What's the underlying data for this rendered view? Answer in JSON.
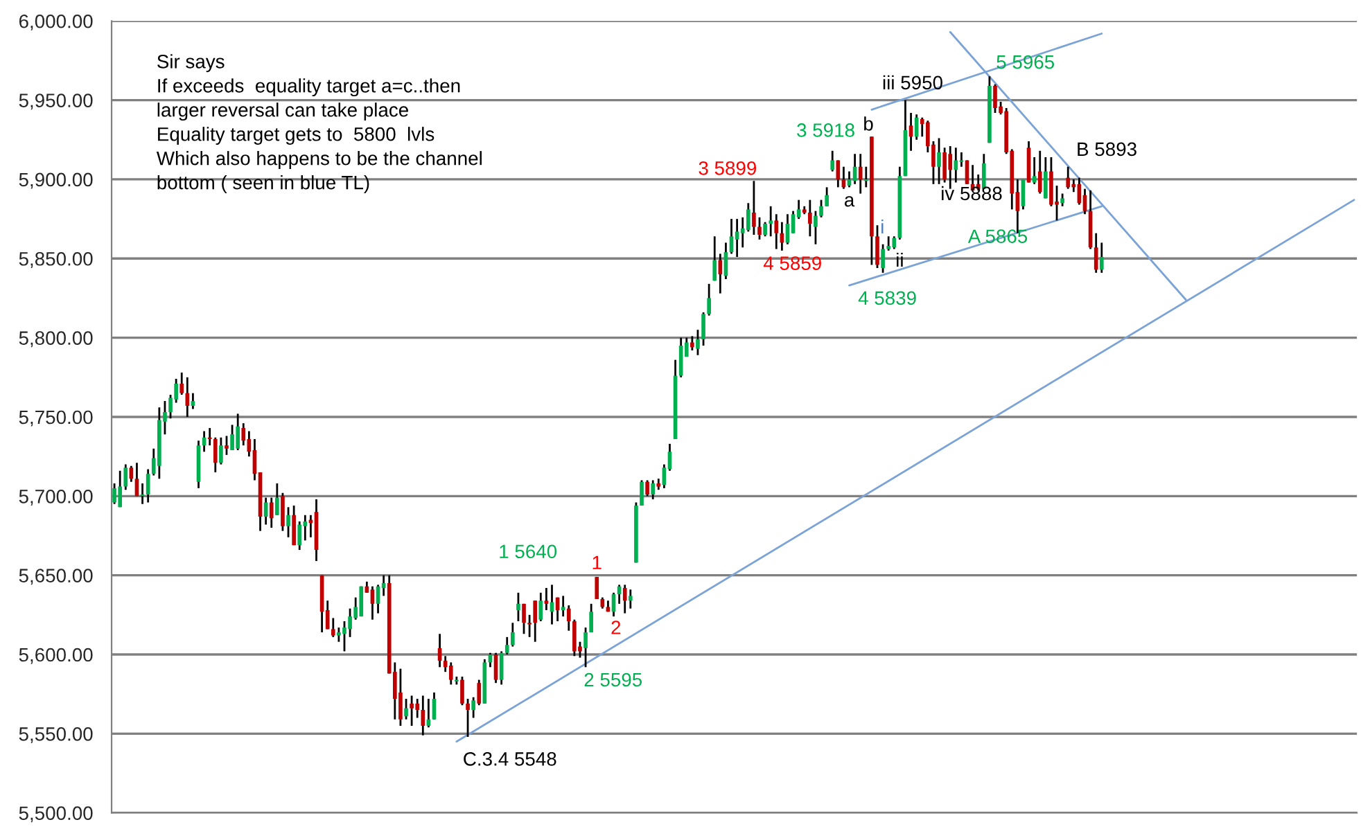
{
  "chart_data": {
    "type": "candlestick",
    "ylim": [
      5500,
      6000
    ],
    "yticks": [
      {
        "value": 5500,
        "label": "5,500.00"
      },
      {
        "value": 5550,
        "label": "5,550.00"
      },
      {
        "value": 5600,
        "label": "5,600.00"
      },
      {
        "value": 5650,
        "label": "5,650.00"
      },
      {
        "value": 5700,
        "label": "5,700.00"
      },
      {
        "value": 5750,
        "label": "5,750.00"
      },
      {
        "value": 5800,
        "label": "5,800.00"
      },
      {
        "value": 5850,
        "label": "5,850.00"
      },
      {
        "value": 5900,
        "label": "5,900.00"
      },
      {
        "value": 5950,
        "label": "5,950.00"
      },
      {
        "value": 6000,
        "label": "6,000.00"
      }
    ],
    "grid": "y",
    "tick_labels": "y",
    "categories": [
      null,
      null,
      null,
      null,
      null,
      null,
      null,
      null,
      null,
      null,
      null,
      null,
      null,
      null,
      null,
      null,
      null,
      null,
      null,
      null,
      null,
      null,
      null,
      null,
      null,
      null,
      null,
      null,
      null,
      null,
      null,
      null,
      null,
      null,
      null,
      null,
      null,
      null,
      null,
      null,
      null,
      null,
      null,
      null,
      null,
      null,
      null,
      null,
      null,
      null,
      null,
      null,
      null,
      null,
      null,
      null,
      null,
      null,
      null,
      null,
      null,
      null,
      null,
      null,
      null,
      null,
      null,
      null,
      null,
      null,
      null,
      null,
      null,
      null,
      null,
      null,
      null,
      null,
      null,
      null,
      null,
      null,
      null,
      null,
      null,
      null,
      null,
      null,
      null,
      null,
      null,
      null,
      null,
      null,
      null,
      null,
      null,
      null,
      null,
      null,
      null,
      null,
      null,
      null,
      null,
      null,
      null,
      null,
      null,
      null,
      null,
      null,
      null,
      null,
      null,
      null,
      null,
      null,
      null,
      null,
      null,
      null,
      null,
      null,
      null,
      null,
      null,
      null,
      null,
      null,
      null,
      null,
      null,
      null,
      null,
      null,
      null,
      null,
      null,
      null,
      null,
      null,
      null,
      null,
      null,
      null,
      null,
      null,
      null,
      null,
      null,
      null,
      null,
      null,
      null,
      null,
      null,
      null,
      null,
      null,
      null,
      null,
      null,
      null,
      null,
      null,
      null,
      null,
      null,
      null,
      null,
      null,
      null,
      null,
      null,
      null,
      null,
      null,
      null,
      null,
      null,
      null,
      null,
      null,
      null,
      null,
      null,
      null,
      null,
      null,
      null,
      null,
      null,
      null,
      null,
      null,
      null,
      null,
      null,
      null,
      null,
      null,
      null,
      null,
      null,
      null,
      null,
      null,
      null,
      null,
      null,
      null,
      null,
      null,
      null,
      null,
      null,
      null,
      null,
      null,
      null,
      null
    ],
    "ohlc": [
      [
        5696,
        5708,
        5695,
        5705
      ],
      [
        5693,
        5716,
        5693,
        5706
      ],
      [
        5706,
        5720,
        5704,
        5718
      ],
      [
        5718,
        5719,
        5709,
        5711
      ],
      [
        5711,
        5721,
        5700,
        5700
      ],
      [
        5700,
        5708,
        5695,
        5701
      ],
      [
        5701,
        5717,
        5696,
        5714
      ],
      [
        5714,
        5730,
        5713,
        5724
      ],
      [
        5719,
        5756,
        5711,
        5748
      ],
      [
        5747,
        5760,
        5739,
        5753
      ],
      [
        5753,
        5764,
        5749,
        5762
      ],
      [
        5761,
        5774,
        5759,
        5771
      ],
      [
        5771,
        5778,
        5764,
        5765
      ],
      [
        5765,
        5775,
        5750,
        5757
      ],
      [
        5757,
        5765,
        5755,
        5760
      ],
      [
        5709,
        5735,
        5705,
        5732
      ],
      [
        5732,
        5741,
        5728,
        5737
      ],
      [
        5737,
        5743,
        5732,
        5736
      ],
      [
        5736,
        5737,
        5715,
        5721
      ],
      [
        5721,
        5737,
        5720,
        5732
      ],
      [
        5732,
        5738,
        5726,
        5730
      ],
      [
        5729,
        5745,
        5729,
        5739
      ],
      [
        5730,
        5752,
        5729,
        5744
      ],
      [
        5743,
        5746,
        5732,
        5735
      ],
      [
        5736,
        5741,
        5725,
        5728
      ],
      [
        5729,
        5736,
        5710,
        5714
      ],
      [
        5715,
        5715,
        5678,
        5687
      ],
      [
        5687,
        5699,
        5682,
        5696
      ],
      [
        5696,
        5699,
        5680,
        5686
      ],
      [
        5688,
        5708,
        5688,
        5699
      ],
      [
        5700,
        5702,
        5678,
        5681
      ],
      [
        5681,
        5693,
        5674,
        5688
      ],
      [
        5688,
        5694,
        5669,
        5669
      ],
      [
        5669,
        5684,
        5666,
        5682
      ],
      [
        5681,
        5688,
        5672,
        5684
      ],
      [
        5685,
        5688,
        5674,
        5683
      ],
      [
        5690,
        5698,
        5659,
        5666
      ],
      [
        5650,
        5650,
        5614,
        5627
      ],
      [
        5628,
        5634,
        5616,
        5616
      ],
      [
        5616,
        5623,
        5611,
        5612
      ],
      [
        5612,
        5617,
        5608,
        5614
      ],
      [
        5613,
        5621,
        5602,
        5617
      ],
      [
        5616,
        5629,
        5611,
        5624
      ],
      [
        5623,
        5636,
        5622,
        5630
      ],
      [
        5624,
        5643,
        5624,
        5643
      ],
      [
        5643,
        5646,
        5639,
        5639
      ],
      [
        5641,
        5643,
        5622,
        5632
      ],
      [
        5632,
        5644,
        5626,
        5643
      ],
      [
        5642,
        5650,
        5637,
        5645
      ],
      [
        5645,
        5650,
        5588,
        5588
      ],
      [
        5589,
        5595,
        5559,
        5572
      ],
      [
        5576,
        5591,
        5555,
        5559
      ],
      [
        5561,
        5572,
        5559,
        5566
      ],
      [
        5569,
        5574,
        5555,
        5566
      ],
      [
        5569,
        5572,
        5560,
        5565
      ],
      [
        5565,
        5574,
        5549,
        5555
      ],
      [
        5555,
        5572,
        5554,
        5559
      ],
      [
        5559,
        5576,
        5559,
        5572
      ],
      [
        5604,
        5613,
        5592,
        5596
      ],
      [
        5596,
        5599,
        5589,
        5592
      ],
      [
        5593,
        5595,
        5581,
        5584
      ],
      [
        5583,
        5586,
        5581,
        5584
      ],
      [
        5584,
        5586,
        5568,
        5569
      ],
      [
        5569,
        5572,
        5548,
        5565
      ],
      [
        5565,
        5573,
        5560,
        5571
      ],
      [
        5582,
        5584,
        5568,
        5569
      ],
      [
        5569,
        5597,
        5569,
        5595
      ],
      [
        5595,
        5601,
        5592,
        5600
      ],
      [
        5600,
        5601,
        5582,
        5584
      ],
      [
        5584,
        5602,
        5581,
        5601
      ],
      [
        5601,
        5611,
        5600,
        5606
      ],
      [
        5606,
        5620,
        5605,
        5614
      ],
      [
        5628,
        5639,
        5621,
        5632
      ],
      [
        5632,
        5632,
        5613,
        5620
      ],
      [
        5620,
        5625,
        5611,
        5619
      ],
      [
        5634,
        5634,
        5608,
        5620
      ],
      [
        5622,
        5639,
        5621,
        5634
      ],
      [
        5634,
        5642,
        5628,
        5632
      ],
      [
        5627,
        5644,
        5619,
        5633
      ],
      [
        5636,
        5636,
        5621,
        5628
      ],
      [
        5628,
        5637,
        5624,
        5630
      ],
      [
        5629,
        5631,
        5615,
        5621
      ],
      [
        5621,
        5622,
        5599,
        5602
      ],
      [
        5605,
        5608,
        5598,
        5602
      ],
      [
        5604,
        5617,
        5592,
        5614
      ],
      [
        5614,
        5632,
        5614,
        5627
      ],
      [
        5649,
        5649,
        5635,
        5635
      ],
      [
        5635,
        5636,
        5629,
        5630
      ],
      [
        5630,
        5634,
        5627,
        5627
      ],
      [
        5627,
        5639,
        5624,
        5638
      ],
      [
        5638,
        5644,
        5632,
        5643
      ],
      [
        5642,
        5644,
        5626,
        5634
      ],
      [
        5634,
        5641,
        5629,
        5637
      ],
      [
        5658,
        5696,
        5658,
        5694
      ],
      [
        5694,
        5710,
        5694,
        5709
      ],
      [
        5709,
        5710,
        5700,
        5701
      ],
      [
        5701,
        5710,
        5698,
        5708
      ],
      [
        5708,
        5711,
        5704,
        5706
      ],
      [
        5707,
        5720,
        5705,
        5718
      ],
      [
        5717,
        5733,
        5716,
        5728
      ],
      [
        5736,
        5786,
        5736,
        5776
      ],
      [
        5776,
        5800,
        5775,
        5795
      ],
      [
        5788,
        5800,
        5788,
        5797
      ],
      [
        5797,
        5801,
        5792,
        5794
      ],
      [
        5793,
        5805,
        5789,
        5799
      ],
      [
        5799,
        5816,
        5795,
        5815
      ],
      [
        5815,
        5834,
        5814,
        5825
      ],
      [
        5836,
        5864,
        5836,
        5849
      ],
      [
        5849,
        5853,
        5828,
        5840
      ],
      [
        5839,
        5860,
        5837,
        5854
      ],
      [
        5854,
        5875,
        5853,
        5864
      ],
      [
        5862,
        5875,
        5851,
        5867
      ],
      [
        5866,
        5876,
        5857,
        5869
      ],
      [
        5868,
        5885,
        5867,
        5881
      ],
      [
        5879,
        5899,
        5865,
        5870
      ],
      [
        5870,
        5876,
        5862,
        5865
      ],
      [
        5865,
        5873,
        5864,
        5872
      ],
      [
        5872,
        5883,
        5864,
        5874
      ],
      [
        5874,
        5878,
        5856,
        5866
      ],
      [
        5866,
        5873,
        5855,
        5860
      ],
      [
        5860,
        5878,
        5859,
        5872
      ],
      [
        5866,
        5880,
        5866,
        5878
      ],
      [
        5876,
        5887,
        5875,
        5881
      ],
      [
        5881,
        5883,
        5878,
        5879
      ],
      [
        5879,
        5887,
        5864,
        5872
      ],
      [
        5870,
        5880,
        5859,
        5877
      ],
      [
        5877,
        5887,
        5876,
        5883
      ],
      [
        5883,
        5895,
        5883,
        5890
      ],
      [
        5906,
        5918,
        5905,
        5912
      ],
      [
        5912,
        5912,
        5895,
        5900
      ],
      [
        5900,
        5908,
        5894,
        5895
      ],
      [
        5896,
        5905,
        5895,
        5900
      ],
      [
        5899,
        5916,
        5897,
        5908
      ],
      [
        5908,
        5916,
        5891,
        5900
      ],
      [
        5899,
        5908,
        5895,
        5900
      ],
      [
        5927,
        5927,
        5846,
        5864
      ],
      [
        5864,
        5871,
        5844,
        5846
      ],
      [
        5844,
        5859,
        5841,
        5856
      ],
      [
        5856,
        5864,
        5855,
        5858
      ],
      [
        5857,
        5864,
        5856,
        5863
      ],
      [
        5863,
        5908,
        5862,
        5902
      ],
      [
        5902,
        5950,
        5902,
        5931
      ],
      [
        5934,
        5942,
        5918,
        5927
      ],
      [
        5927,
        5941,
        5925,
        5939
      ],
      [
        5938,
        5939,
        5927,
        5935
      ],
      [
        5936,
        5937,
        5917,
        5921
      ],
      [
        5922,
        5924,
        5897,
        5908
      ],
      [
        5908,
        5926,
        5897,
        5917
      ],
      [
        5917,
        5920,
        5898,
        5900
      ],
      [
        5916,
        5921,
        5894,
        5906
      ],
      [
        5906,
        5920,
        5898,
        5912
      ],
      [
        5911,
        5917,
        5908,
        5912
      ],
      [
        5912,
        5912,
        5897,
        5897
      ],
      [
        5897,
        5909,
        5893,
        5893
      ],
      [
        5897,
        5903,
        5893,
        5894
      ],
      [
        5894,
        5916,
        5894,
        5910
      ],
      [
        5923,
        5965,
        5923,
        5959
      ],
      [
        5959,
        5960,
        5942,
        5945
      ],
      [
        5946,
        5949,
        5941,
        5942
      ],
      [
        5943,
        5945,
        5916,
        5917
      ],
      [
        5918,
        5919,
        5881,
        5891
      ],
      [
        5892,
        5900,
        5866,
        5880
      ],
      [
        5883,
        5900,
        5881,
        5900
      ],
      [
        5920,
        5924,
        5898,
        5898
      ],
      [
        5898,
        5914,
        5897,
        5902
      ],
      [
        5905,
        5918,
        5891,
        5892
      ],
      [
        5888,
        5914,
        5888,
        5905
      ],
      [
        5905,
        5914,
        5883,
        5884
      ],
      [
        5886,
        5896,
        5874,
        5884
      ],
      [
        5885,
        5891,
        5883,
        5888
      ],
      [
        5901,
        5908,
        5894,
        5895
      ],
      [
        5897,
        5900,
        5892,
        5895
      ],
      [
        5897,
        5901,
        5884,
        5885
      ],
      [
        5890,
        5894,
        5878,
        5880
      ],
      [
        5880,
        5893,
        5856,
        5857
      ],
      [
        5857,
        5866,
        5841,
        5843
      ],
      [
        5843,
        5860,
        5841,
        5851
      ],
      null,
      null,
      null,
      null,
      null,
      null,
      null,
      null,
      null,
      null,
      null,
      null,
      null,
      null,
      null,
      null,
      null,
      null,
      null,
      null,
      null,
      null,
      null,
      null,
      null,
      null,
      null,
      null,
      null,
      null,
      null,
      null,
      null,
      null,
      null,
      null,
      null,
      null,
      null,
      null,
      null,
      null,
      null,
      null,
      null
    ],
    "series": [
      {
        "type": "line",
        "color": "#7ba3d6",
        "values": [
          null,
          null,
          null,
          null,
          null,
          null,
          null,
          null,
          null,
          null,
          null,
          null,
          null,
          null,
          null,
          null,
          null,
          null,
          null,
          null,
          null,
          null,
          null,
          null,
          null,
          null,
          null,
          null,
          null,
          null,
          null,
          null,
          null,
          null,
          null,
          null,
          null,
          null,
          null,
          null,
          null,
          null,
          null,
          null,
          null,
          null,
          null,
          null,
          null,
          null,
          null,
          null,
          null,
          null,
          null,
          null,
          null,
          null,
          null,
          null,
          null,
          5545,
          null,
          null,
          null,
          null,
          null,
          null,
          null,
          null,
          null,
          null,
          null,
          null,
          null,
          null,
          null,
          null,
          null,
          null,
          null,
          null,
          null,
          null,
          null,
          null,
          null,
          null,
          null,
          null,
          null,
          null,
          null,
          null,
          null,
          null,
          null,
          null,
          null,
          null,
          null,
          null,
          null,
          null,
          null,
          null,
          null,
          null,
          null,
          null,
          null,
          null,
          null,
          null,
          null,
          null,
          null,
          null,
          null,
          null,
          null,
          null,
          null,
          null,
          null,
          null,
          null,
          null,
          null,
          null,
          null,
          null,
          null,
          null,
          null,
          null,
          null,
          null,
          null,
          null,
          null,
          null,
          null,
          null,
          null,
          null,
          null,
          null,
          null,
          null,
          null,
          null,
          null,
          null,
          null,
          null,
          null,
          null,
          null,
          null,
          null,
          null,
          null,
          null,
          null,
          null,
          null,
          null,
          null,
          null,
          null,
          null,
          null,
          null,
          null,
          null,
          null,
          null,
          null,
          null,
          null,
          null,
          null,
          null,
          null,
          null,
          null,
          null,
          null,
          null,
          null,
          null,
          null,
          null,
          null,
          null,
          null,
          null,
          null,
          null,
          null,
          null,
          null,
          null,
          null,
          null,
          null,
          null,
          null,
          null,
          null,
          null,
          null,
          null,
          null,
          null,
          null,
          null,
          null,
          null,
          null,
          5887
        ]
      },
      {
        "type": "line",
        "color": "#7ba3d6",
        "values": [
          null,
          null,
          null,
          null,
          null,
          null,
          null,
          null,
          null,
          null,
          null,
          null,
          null,
          null,
          null,
          null,
          null,
          null,
          null,
          null,
          null,
          null,
          null,
          null,
          null,
          null,
          null,
          null,
          null,
          null,
          null,
          null,
          null,
          null,
          null,
          null,
          null,
          null,
          null,
          null,
          null,
          null,
          null,
          null,
          null,
          null,
          null,
          null,
          null,
          null,
          null,
          null,
          null,
          null,
          null,
          null,
          null,
          null,
          null,
          null,
          null,
          null,
          null,
          null,
          null,
          null,
          null,
          null,
          null,
          null,
          null,
          null,
          null,
          null,
          null,
          null,
          null,
          null,
          null,
          null,
          null,
          null,
          null,
          null,
          null,
          null,
          null,
          null,
          null,
          null,
          null,
          null,
          null,
          null,
          null,
          null,
          null,
          null,
          null,
          null,
          null,
          null,
          null,
          null,
          null,
          null,
          null,
          null,
          null,
          null,
          null,
          null,
          null,
          null,
          null,
          null,
          null,
          null,
          null,
          null,
          null,
          null,
          null,
          null,
          null,
          null,
          null,
          null,
          null,
          null,
          null,
          5833,
          null,
          null,
          null,
          null,
          null,
          null,
          null,
          null,
          null,
          null,
          null,
          null,
          null,
          null,
          null,
          null,
          null,
          null,
          null,
          null,
          null,
          null,
          null,
          null,
          null,
          null,
          null,
          null,
          null,
          null,
          null,
          null,
          null,
          null,
          null,
          null,
          null,
          null,
          null,
          null,
          null,
          null,
          null,
          null,
          5883,
          null,
          null,
          null,
          null,
          null,
          null,
          null,
          null,
          null,
          null,
          null,
          null,
          null,
          null,
          null,
          null,
          null,
          null,
          null,
          null,
          null,
          null,
          null,
          null,
          null,
          null,
          null,
          null,
          null,
          null,
          null,
          null,
          null,
          null,
          null,
          null,
          null,
          null,
          null,
          null,
          null,
          null,
          null,
          null,
          null
        ]
      },
      {
        "type": "line",
        "color": "#7ba3d6",
        "values": [
          null,
          null,
          null,
          null,
          null,
          null,
          null,
          null,
          null,
          null,
          null,
          null,
          null,
          null,
          null,
          null,
          null,
          null,
          null,
          null,
          null,
          null,
          null,
          null,
          null,
          null,
          null,
          null,
          null,
          null,
          null,
          null,
          null,
          null,
          null,
          null,
          null,
          null,
          null,
          null,
          null,
          null,
          null,
          null,
          null,
          null,
          null,
          null,
          null,
          null,
          null,
          null,
          null,
          null,
          null,
          null,
          null,
          null,
          null,
          null,
          null,
          null,
          null,
          null,
          null,
          null,
          null,
          null,
          null,
          null,
          null,
          null,
          null,
          null,
          null,
          null,
          null,
          null,
          null,
          null,
          null,
          null,
          null,
          null,
          null,
          null,
          null,
          null,
          null,
          null,
          null,
          null,
          null,
          null,
          null,
          null,
          null,
          null,
          null,
          null,
          null,
          null,
          null,
          null,
          null,
          null,
          null,
          null,
          null,
          null,
          null,
          null,
          null,
          null,
          null,
          null,
          null,
          null,
          null,
          null,
          null,
          null,
          null,
          null,
          null,
          null,
          null,
          null,
          null,
          null,
          null,
          null,
          null,
          null,
          null,
          5944,
          null,
          null,
          null,
          null,
          null,
          null,
          null,
          null,
          null,
          null,
          null,
          null,
          null,
          null,
          null,
          null,
          null,
          null,
          null,
          null,
          null,
          null,
          null,
          null,
          null,
          null,
          null,
          null,
          null,
          null,
          null,
          null,
          null,
          null,
          null,
          null,
          null,
          null,
          null,
          null,
          5992,
          null,
          null,
          null,
          null,
          null,
          null,
          null,
          null,
          null,
          null,
          null,
          null,
          null,
          null,
          null,
          null,
          null,
          null,
          null,
          null,
          null,
          null,
          null,
          null,
          null,
          null,
          null,
          null,
          null,
          null,
          null,
          null,
          null,
          null,
          null,
          null,
          null,
          null,
          null,
          null,
          null,
          null,
          null,
          null,
          null
        ]
      },
      {
        "type": "line",
        "color": "#7ba3d6",
        "values": [
          null,
          null,
          null,
          null,
          null,
          null,
          null,
          null,
          null,
          null,
          null,
          null,
          null,
          null,
          null,
          null,
          null,
          null,
          null,
          null,
          null,
          null,
          null,
          null,
          null,
          null,
          null,
          null,
          null,
          null,
          null,
          null,
          null,
          null,
          null,
          null,
          null,
          null,
          null,
          null,
          null,
          null,
          null,
          null,
          null,
          null,
          null,
          null,
          null,
          null,
          null,
          null,
          null,
          null,
          null,
          null,
          null,
          null,
          null,
          null,
          null,
          null,
          null,
          null,
          null,
          null,
          null,
          null,
          null,
          null,
          null,
          null,
          null,
          null,
          null,
          null,
          null,
          null,
          null,
          null,
          null,
          null,
          null,
          null,
          null,
          null,
          null,
          null,
          null,
          null,
          null,
          null,
          null,
          null,
          null,
          null,
          null,
          null,
          null,
          null,
          null,
          null,
          null,
          null,
          null,
          null,
          null,
          null,
          null,
          null,
          null,
          null,
          null,
          null,
          null,
          null,
          null,
          null,
          null,
          null,
          null,
          null,
          null,
          null,
          null,
          null,
          null,
          null,
          null,
          null,
          null,
          null,
          null,
          null,
          null,
          null,
          null,
          null,
          null,
          null,
          null,
          null,
          null,
          null,
          null,
          null,
          null,
          null,
          null,
          5993,
          null,
          null,
          null,
          null,
          null,
          null,
          null,
          null,
          null,
          null,
          null,
          null,
          null,
          null,
          null,
          null,
          null,
          null,
          null,
          null,
          null,
          null,
          null,
          null,
          null,
          null,
          null,
          null,
          null,
          null,
          null,
          null,
          null,
          null,
          null,
          null,
          null,
          null,
          null,
          null,
          null,
          5824,
          null,
          null,
          null,
          null,
          null,
          null,
          null,
          null,
          null,
          null,
          null,
          null,
          null,
          null,
          null,
          null,
          null,
          null,
          null,
          null,
          null,
          null,
          null,
          null,
          null,
          null,
          null,
          null,
          null,
          null
        ]
      }
    ],
    "annotations": [
      "Sir says\nIf exceeds  equality target a=c..then\nlarger reversal can take place\nEquality target gets to  5800  lvls\nWhich also happens to be the channel\nbottom ( seen in blue TL)",
      "3 5899",
      "4 5859",
      "3 5918",
      "a",
      "b",
      "iii 5950",
      "5 5965",
      "i",
      "ii",
      "4 5839",
      "iv 5888",
      "A 5865",
      "B 5893",
      "1 5640",
      "1",
      "2",
      "2 5595",
      "C.3.4 5548"
    ]
  }
}
